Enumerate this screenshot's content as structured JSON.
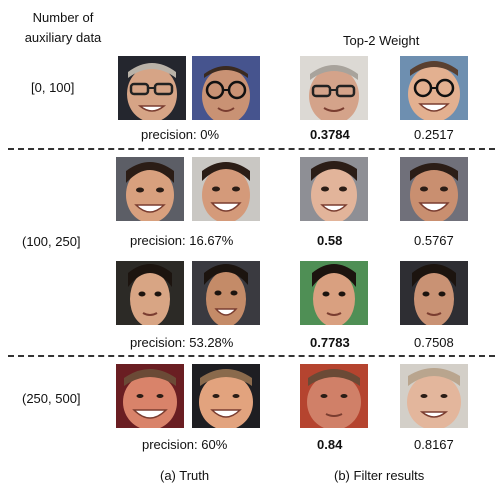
{
  "header": {
    "left_title_line1": "Number of",
    "left_title_line2": "auxiliary data",
    "right_title": "Top-2 Weight"
  },
  "groups": [
    {
      "range": "[0, 100]",
      "rows": [
        {
          "precision": "precision: 0%",
          "weight1": "0.3784",
          "weight2": "0.2517"
        }
      ]
    },
    {
      "range": "(100, 250]",
      "rows": [
        {
          "precision": "precision: 16.67%",
          "weight1": "0.58",
          "weight2": "0.5767"
        },
        {
          "precision": "precision: 53.28%",
          "weight1": "0.7783",
          "weight2": "0.7508"
        }
      ]
    },
    {
      "range": "(250, 500]",
      "rows": [
        {
          "precision": "precision: 60%",
          "weight1": "0.84",
          "weight2": "0.8167"
        }
      ]
    }
  ],
  "captions": {
    "truth": "(a) Truth",
    "filter": "(b) Filter results"
  },
  "colors": {
    "skin_a": "#e2b49a",
    "skin_b": "#c99274",
    "skin_c": "#d8a07e",
    "skin_red": "#d9836a",
    "hair_dark": "#2b1d16",
    "hair_light": "#b9b2a8",
    "bg_dark": "#24262e",
    "bg_gray": "#8e8f95",
    "bg_blue": "#46548e",
    "bg_green": "#4f8f55",
    "bg_pale": "#dcd9d4",
    "dash_color": "#333333"
  }
}
